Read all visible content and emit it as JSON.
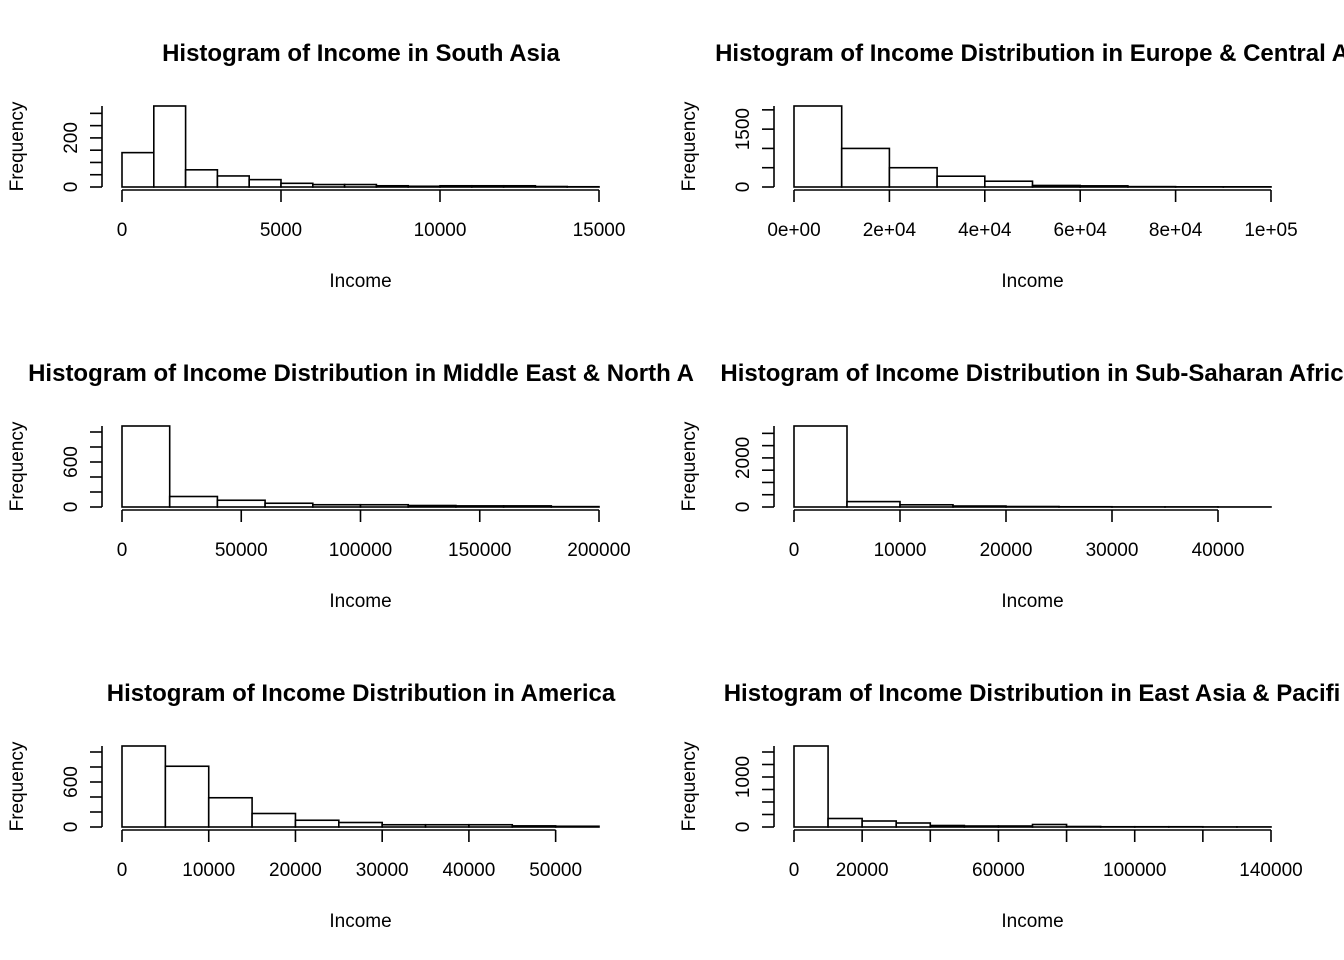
{
  "chart_data": [
    {
      "type": "bar",
      "title": "Histogram of Income in South Asia",
      "xlabel": "Income",
      "ylabel": "Frequency",
      "xlim": [
        0,
        15000
      ],
      "ylim": [
        0,
        330
      ],
      "x_ticks": [
        "0",
        "5000",
        "10000",
        "15000"
      ],
      "y_ticks": [
        "0",
        "200"
      ],
      "bin_edges": [
        0,
        1000,
        2000,
        3000,
        4000,
        5000,
        6000,
        7000,
        8000,
        9000,
        10000,
        11000,
        12000,
        13000,
        14000,
        15000
      ],
      "values": [
        140,
        330,
        70,
        45,
        30,
        15,
        10,
        10,
        5,
        3,
        5,
        5,
        5,
        2,
        1
      ]
    },
    {
      "type": "bar",
      "title": "Histogram of Income Distribution in Europe & Central A",
      "xlabel": "Income",
      "ylabel": "Frequency",
      "xlim": [
        0,
        100000
      ],
      "ylim": [
        0,
        2100
      ],
      "x_ticks": [
        "0e+00",
        "2e+04",
        "4e+04",
        "6e+04",
        "8e+04",
        "1e+05"
      ],
      "y_ticks": [
        "0",
        "1500"
      ],
      "bin_edges": [
        0,
        10000,
        20000,
        30000,
        40000,
        50000,
        60000,
        70000,
        80000,
        90000,
        100000
      ],
      "values": [
        2100,
        1000,
        500,
        280,
        150,
        40,
        30,
        10,
        5,
        5
      ]
    },
    {
      "type": "bar",
      "title": "Histogram of Income Distribution in Middle East & North A",
      "xlabel": "Income",
      "ylabel": "Frequency",
      "xlim": [
        0,
        200000
      ],
      "ylim": [
        0,
        1080
      ],
      "x_ticks": [
        "0",
        "50000",
        "100000",
        "150000",
        "200000"
      ],
      "y_ticks": [
        "0",
        "600"
      ],
      "bin_edges": [
        0,
        20000,
        40000,
        60000,
        80000,
        100000,
        120000,
        140000,
        160000,
        180000,
        200000
      ],
      "values": [
        1080,
        140,
        90,
        50,
        30,
        30,
        20,
        15,
        15,
        5
      ]
    },
    {
      "type": "bar",
      "title": "Histogram of Income Distribution in Sub-Saharan Afric",
      "xlabel": "Income",
      "ylabel": "Frequency",
      "xlim": [
        0,
        45000
      ],
      "ylim": [
        0,
        3300
      ],
      "x_ticks": [
        "0",
        "10000",
        "20000",
        "30000",
        "40000"
      ],
      "y_ticks": [
        "0",
        "2000"
      ],
      "bin_edges": [
        0,
        5000,
        10000,
        15000,
        20000,
        25000,
        30000,
        35000,
        40000,
        45000
      ],
      "values": [
        3300,
        220,
        90,
        40,
        20,
        10,
        5,
        5,
        2
      ]
    },
    {
      "type": "bar",
      "title": "Histogram of Income Distribution in America",
      "xlabel": "Income",
      "ylabel": "Frequency",
      "xlim": [
        0,
        55000
      ],
      "ylim": [
        0,
        1080
      ],
      "x_ticks": [
        "0",
        "10000",
        "20000",
        "30000",
        "40000",
        "50000"
      ],
      "y_ticks": [
        "0",
        "600"
      ],
      "bin_edges": [
        0,
        5000,
        10000,
        15000,
        20000,
        25000,
        30000,
        35000,
        40000,
        45000,
        50000,
        55000
      ],
      "values": [
        1080,
        810,
        390,
        180,
        90,
        60,
        30,
        30,
        30,
        15,
        10
      ]
    },
    {
      "type": "bar",
      "title": "Histogram of Income Distribution in East Asia & Pacifi",
      "xlabel": "Income",
      "ylabel": "Frequency",
      "xlim": [
        0,
        140000
      ],
      "ylim": [
        0,
        1620
      ],
      "x_ticks": [
        "0",
        "20000",
        "60000",
        "100000",
        "140000"
      ],
      "x_tick_values": [
        0,
        20000,
        40000,
        60000,
        80000,
        100000,
        120000,
        140000
      ],
      "y_ticks": [
        "0",
        "1000"
      ],
      "bin_edges": [
        0,
        10000,
        20000,
        30000,
        40000,
        50000,
        60000,
        70000,
        80000,
        90000,
        100000,
        110000,
        120000,
        130000,
        140000
      ],
      "values": [
        1620,
        170,
        120,
        80,
        30,
        20,
        20,
        50,
        10,
        5,
        5,
        5,
        2,
        2
      ]
    }
  ]
}
